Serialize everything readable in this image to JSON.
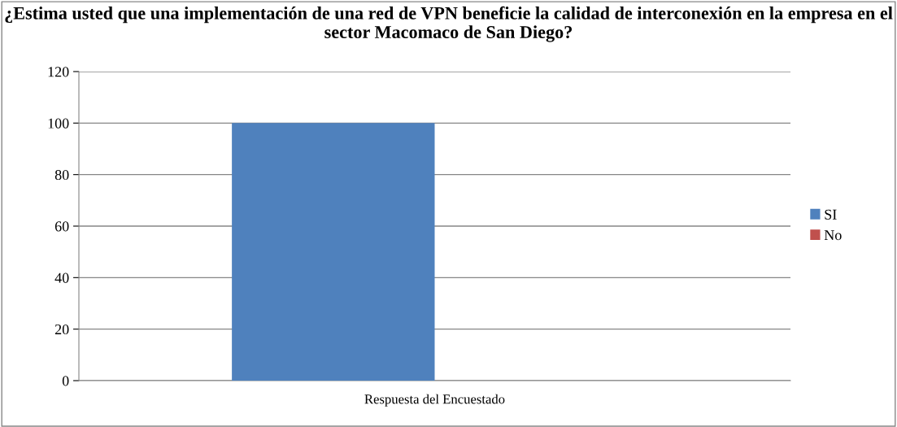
{
  "chart_data": {
    "type": "bar",
    "title": "¿Estima usted que una implementación de una red de VPN beneficie la calidad de interconexión en la empresa en el sector Macomaco de San Diego?",
    "categories": [
      "Respuesta del Encuestado"
    ],
    "series": [
      {
        "name": "SI",
        "color": "#4f81bd",
        "values": [
          100
        ]
      },
      {
        "name": "No",
        "color": "#c0504d",
        "values": [
          0
        ]
      }
    ],
    "ylim": [
      0,
      120
    ],
    "yticks": [
      0,
      20,
      40,
      60,
      80,
      100,
      120
    ],
    "grid": "y",
    "legend": "right"
  }
}
